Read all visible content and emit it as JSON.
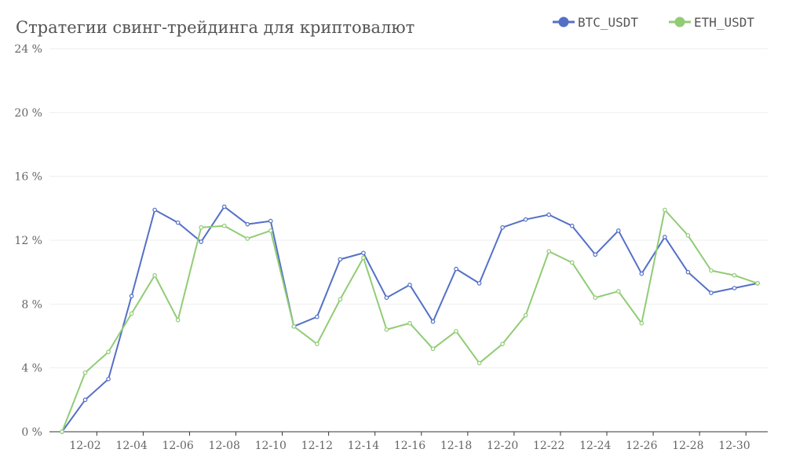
{
  "chart_data": {
    "type": "line",
    "title": "Стратегии свинг-трейдинга для криптовалют",
    "xlabel": "",
    "ylabel": "",
    "x": [
      "12-01",
      "12-02",
      "12-03",
      "12-04",
      "12-05",
      "12-06",
      "12-07",
      "12-08",
      "12-09",
      "12-10",
      "12-11",
      "12-12",
      "12-13",
      "12-14",
      "12-15",
      "12-16",
      "12-17",
      "12-18",
      "12-19",
      "12-20",
      "12-21",
      "12-22",
      "12-23",
      "12-24",
      "12-25",
      "12-26",
      "12-27",
      "12-28",
      "12-29",
      "12-30",
      "12-31"
    ],
    "x_tick_labels": [
      "12-02",
      "12-04",
      "12-06",
      "12-08",
      "12-10",
      "12-12",
      "12-14",
      "12-16",
      "12-18",
      "12-20",
      "12-22",
      "12-24",
      "12-26",
      "12-28",
      "12-30"
    ],
    "ylim": [
      0,
      24
    ],
    "y_ticks": [
      0,
      4,
      8,
      12,
      16,
      20,
      24
    ],
    "y_tick_labels": [
      "0 %",
      "4 %",
      "8 %",
      "12 %",
      "16 %",
      "20 %",
      "24 %"
    ],
    "grid": true,
    "legend_position": "top-right",
    "series": [
      {
        "name": "BTC_USDT",
        "color": "#5470c6",
        "values": [
          0,
          2.0,
          3.3,
          8.5,
          13.9,
          13.1,
          11.9,
          14.1,
          13.0,
          13.2,
          6.6,
          7.2,
          10.8,
          11.2,
          8.4,
          9.2,
          6.9,
          10.2,
          9.3,
          12.8,
          13.3,
          13.6,
          12.9,
          11.1,
          12.6,
          9.9,
          12.2,
          10.0,
          8.7,
          9.0,
          9.3
        ]
      },
      {
        "name": "ETH_USDT",
        "color": "#91cc75",
        "values": [
          0,
          3.7,
          5.0,
          7.4,
          9.8,
          7.0,
          12.8,
          12.9,
          12.1,
          12.6,
          6.6,
          5.5,
          8.3,
          10.9,
          6.4,
          6.8,
          5.2,
          6.3,
          4.3,
          5.5,
          7.3,
          11.3,
          10.6,
          8.4,
          8.8,
          6.8,
          13.9,
          12.3,
          10.1,
          9.8,
          9.3
        ]
      }
    ]
  }
}
